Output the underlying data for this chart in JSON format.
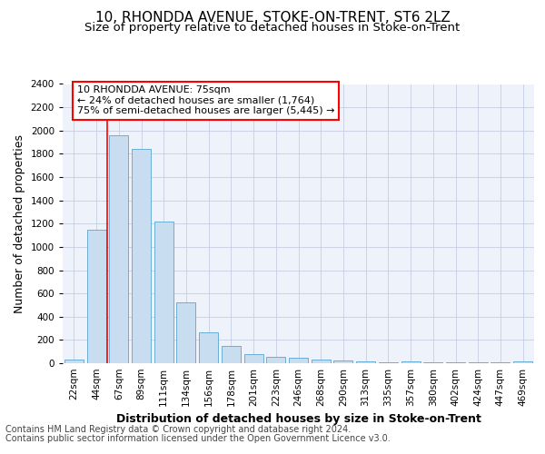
{
  "title": "10, RHONDDA AVENUE, STOKE-ON-TRENT, ST6 2LZ",
  "subtitle": "Size of property relative to detached houses in Stoke-on-Trent",
  "xlabel": "Distribution of detached houses by size in Stoke-on-Trent",
  "ylabel": "Number of detached properties",
  "categories": [
    "22sqm",
    "44sqm",
    "67sqm",
    "89sqm",
    "111sqm",
    "134sqm",
    "156sqm",
    "178sqm",
    "201sqm",
    "223sqm",
    "246sqm",
    "268sqm",
    "290sqm",
    "313sqm",
    "335sqm",
    "357sqm",
    "380sqm",
    "402sqm",
    "424sqm",
    "447sqm",
    "469sqm"
  ],
  "values": [
    30,
    1150,
    1960,
    1840,
    1220,
    520,
    265,
    150,
    80,
    55,
    45,
    35,
    20,
    15,
    5,
    15,
    5,
    5,
    5,
    5,
    15
  ],
  "bar_color": "#c8ddf0",
  "bar_edge_color": "#6aaed6",
  "ylim": [
    0,
    2400
  ],
  "yticks": [
    0,
    200,
    400,
    600,
    800,
    1000,
    1200,
    1400,
    1600,
    1800,
    2000,
    2200,
    2400
  ],
  "red_line_x": 1.5,
  "annotation_title": "10 RHONDDA AVENUE: 75sqm",
  "annotation_line1": "← 24% of detached houses are smaller (1,764)",
  "annotation_line2": "75% of semi-detached houses are larger (5,445) →",
  "footer_line1": "Contains HM Land Registry data © Crown copyright and database right 2024.",
  "footer_line2": "Contains public sector information licensed under the Open Government Licence v3.0.",
  "background_color": "#eef2fa",
  "grid_color": "#c5cde0",
  "title_fontsize": 11,
  "subtitle_fontsize": 9.5,
  "axis_label_fontsize": 9,
  "tick_fontsize": 7.5,
  "footer_fontsize": 7
}
